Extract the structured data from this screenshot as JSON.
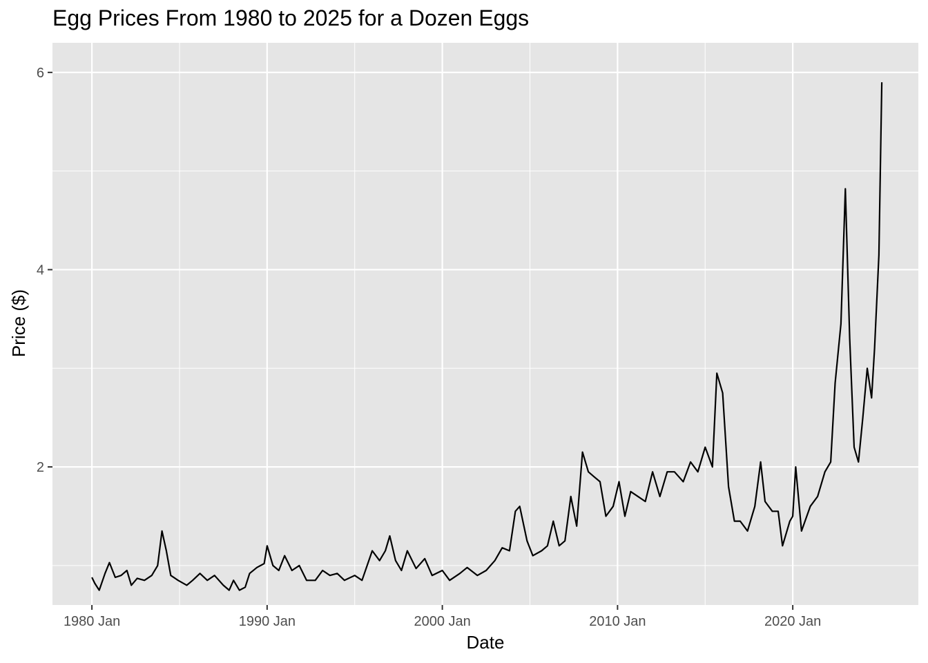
{
  "chart_data": {
    "type": "line",
    "title": "Egg Prices From 1980 to 2025 for a Dozen Eggs",
    "xlabel": "Date",
    "ylabel": "Price ($)",
    "x_ticks": [
      "1980 Jan",
      "1990 Jan",
      "2000 Jan",
      "2010 Jan",
      "2020 Jan"
    ],
    "y_ticks": [
      "2",
      "4",
      "6"
    ],
    "xlim": [
      "1977-10",
      "2027-03"
    ],
    "ylim": [
      0.6,
      6.3
    ],
    "grid": true,
    "colors": {
      "panel": "#e5e5e5",
      "grid": "#ffffff",
      "line": "#000000",
      "tick": "#4d4d4d"
    },
    "series": [
      {
        "points": [
          [
            "1980-01",
            0.88
          ],
          [
            "1980-03",
            0.82
          ],
          [
            "1980-06",
            0.75
          ],
          [
            "1980-10",
            0.92
          ],
          [
            "1981-01",
            1.03
          ],
          [
            "1981-05",
            0.88
          ],
          [
            "1981-09",
            0.9
          ],
          [
            "1982-01",
            0.95
          ],
          [
            "1982-04",
            0.8
          ],
          [
            "1982-08",
            0.87
          ],
          [
            "1983-01",
            0.85
          ],
          [
            "1983-06",
            0.9
          ],
          [
            "1983-10",
            1.0
          ],
          [
            "1984-01",
            1.35
          ],
          [
            "1984-04",
            1.15
          ],
          [
            "1984-07",
            0.9
          ],
          [
            "1984-12",
            0.85
          ],
          [
            "1985-06",
            0.8
          ],
          [
            "1985-10",
            0.85
          ],
          [
            "1986-03",
            0.92
          ],
          [
            "1986-08",
            0.85
          ],
          [
            "1987-01",
            0.9
          ],
          [
            "1987-07",
            0.8
          ],
          [
            "1987-11",
            0.75
          ],
          [
            "1988-02",
            0.85
          ],
          [
            "1988-06",
            0.75
          ],
          [
            "1988-10",
            0.78
          ],
          [
            "1989-01",
            0.92
          ],
          [
            "1989-06",
            0.98
          ],
          [
            "1989-11",
            1.02
          ],
          [
            "1990-01",
            1.2
          ],
          [
            "1990-05",
            1.0
          ],
          [
            "1990-09",
            0.95
          ],
          [
            "1991-01",
            1.1
          ],
          [
            "1991-06",
            0.95
          ],
          [
            "1991-11",
            1.0
          ],
          [
            "1992-04",
            0.85
          ],
          [
            "1992-10",
            0.85
          ],
          [
            "1993-03",
            0.95
          ],
          [
            "1993-08",
            0.9
          ],
          [
            "1994-01",
            0.92
          ],
          [
            "1994-06",
            0.85
          ],
          [
            "1995-01",
            0.9
          ],
          [
            "1995-06",
            0.85
          ],
          [
            "1996-01",
            1.15
          ],
          [
            "1996-06",
            1.05
          ],
          [
            "1996-10",
            1.15
          ],
          [
            "1997-01",
            1.3
          ],
          [
            "1997-05",
            1.05
          ],
          [
            "1997-09",
            0.95
          ],
          [
            "1998-01",
            1.15
          ],
          [
            "1998-07",
            0.97
          ],
          [
            "1999-01",
            1.07
          ],
          [
            "1999-06",
            0.9
          ],
          [
            "2000-01",
            0.95
          ],
          [
            "2000-06",
            0.85
          ],
          [
            "2001-01",
            0.92
          ],
          [
            "2001-06",
            0.98
          ],
          [
            "2002-01",
            0.9
          ],
          [
            "2002-07",
            0.95
          ],
          [
            "2003-01",
            1.05
          ],
          [
            "2003-06",
            1.18
          ],
          [
            "2003-11",
            1.15
          ],
          [
            "2004-03",
            1.55
          ],
          [
            "2004-06",
            1.6
          ],
          [
            "2004-11",
            1.25
          ],
          [
            "2005-03",
            1.1
          ],
          [
            "2005-09",
            1.15
          ],
          [
            "2006-01",
            1.2
          ],
          [
            "2006-05",
            1.45
          ],
          [
            "2006-09",
            1.2
          ],
          [
            "2007-01",
            1.25
          ],
          [
            "2007-05",
            1.7
          ],
          [
            "2007-09",
            1.4
          ],
          [
            "2008-01",
            2.15
          ],
          [
            "2008-05",
            1.95
          ],
          [
            "2008-09",
            1.9
          ],
          [
            "2009-01",
            1.85
          ],
          [
            "2009-05",
            1.5
          ],
          [
            "2009-10",
            1.6
          ],
          [
            "2010-02",
            1.85
          ],
          [
            "2010-06",
            1.5
          ],
          [
            "2010-10",
            1.75
          ],
          [
            "2011-03",
            1.7
          ],
          [
            "2011-08",
            1.65
          ],
          [
            "2012-01",
            1.95
          ],
          [
            "2012-06",
            1.7
          ],
          [
            "2012-11",
            1.95
          ],
          [
            "2013-04",
            1.95
          ],
          [
            "2013-10",
            1.85
          ],
          [
            "2014-03",
            2.05
          ],
          [
            "2014-08",
            1.95
          ],
          [
            "2015-01",
            2.2
          ],
          [
            "2015-06",
            2.0
          ],
          [
            "2015-09",
            2.95
          ],
          [
            "2016-01",
            2.75
          ],
          [
            "2016-05",
            1.8
          ],
          [
            "2016-09",
            1.45
          ],
          [
            "2017-01",
            1.45
          ],
          [
            "2017-06",
            1.35
          ],
          [
            "2017-11",
            1.6
          ],
          [
            "2018-03",
            2.05
          ],
          [
            "2018-06",
            1.65
          ],
          [
            "2018-11",
            1.55
          ],
          [
            "2019-03",
            1.55
          ],
          [
            "2019-06",
            1.2
          ],
          [
            "2019-11",
            1.45
          ],
          [
            "2020-01",
            1.5
          ],
          [
            "2020-03",
            2.0
          ],
          [
            "2020-07",
            1.35
          ],
          [
            "2021-01",
            1.6
          ],
          [
            "2021-06",
            1.7
          ],
          [
            "2021-11",
            1.95
          ],
          [
            "2022-03",
            2.05
          ],
          [
            "2022-06",
            2.85
          ],
          [
            "2022-10",
            3.45
          ],
          [
            "2023-01",
            4.82
          ],
          [
            "2023-04",
            3.3
          ],
          [
            "2023-07",
            2.2
          ],
          [
            "2023-10",
            2.05
          ],
          [
            "2024-01",
            2.5
          ],
          [
            "2024-04",
            3.0
          ],
          [
            "2024-07",
            2.7
          ],
          [
            "2024-09",
            3.2
          ],
          [
            "2024-12",
            4.15
          ],
          [
            "2025-02",
            5.9
          ]
        ]
      }
    ]
  }
}
